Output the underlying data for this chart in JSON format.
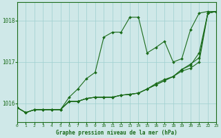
{
  "title": "Graphe pression niveau de la mer (hPa)",
  "background_color": "#cfe8e8",
  "grid_color": "#9ecfcf",
  "line_color": "#1a6b1a",
  "xlim": [
    0,
    23
  ],
  "ylim": [
    1015.55,
    1018.45
  ],
  "yticks": [
    1016,
    1017,
    1018
  ],
  "xticks": [
    0,
    1,
    2,
    3,
    4,
    5,
    6,
    7,
    8,
    9,
    10,
    11,
    12,
    13,
    14,
    15,
    16,
    17,
    18,
    19,
    20,
    21,
    22,
    23
  ],
  "series": [
    [
      1015.9,
      1015.78,
      1015.85,
      1015.85,
      1015.85,
      1015.85,
      1016.15,
      1016.35,
      1016.6,
      1016.75,
      1017.6,
      1017.72,
      1017.72,
      1018.08,
      1018.08,
      1017.22,
      1017.35,
      1017.5,
      1017.0,
      1017.08,
      1017.78,
      1018.18,
      1018.22,
      1018.22
    ],
    [
      1015.9,
      1015.78,
      1015.85,
      1015.85,
      1015.85,
      1015.85,
      1016.05,
      1016.05,
      1016.12,
      1016.15,
      1016.15,
      1016.15,
      1016.2,
      1016.22,
      1016.25,
      1016.35,
      1016.45,
      1016.55,
      1016.65,
      1016.78,
      1016.85,
      1017.0,
      1018.18,
      1018.22
    ],
    [
      1015.9,
      1015.78,
      1015.85,
      1015.85,
      1015.85,
      1015.85,
      1016.05,
      1016.05,
      1016.12,
      1016.15,
      1016.15,
      1016.15,
      1016.2,
      1016.22,
      1016.25,
      1016.35,
      1016.45,
      1016.55,
      1016.65,
      1016.82,
      1016.92,
      1017.22,
      1018.18,
      1018.22
    ],
    [
      1015.9,
      1015.78,
      1015.85,
      1015.85,
      1015.85,
      1015.85,
      1016.05,
      1016.05,
      1016.12,
      1016.15,
      1016.15,
      1016.15,
      1016.2,
      1016.22,
      1016.25,
      1016.35,
      1016.48,
      1016.58,
      1016.65,
      1016.82,
      1016.95,
      1017.1,
      1018.18,
      1018.22
    ]
  ]
}
